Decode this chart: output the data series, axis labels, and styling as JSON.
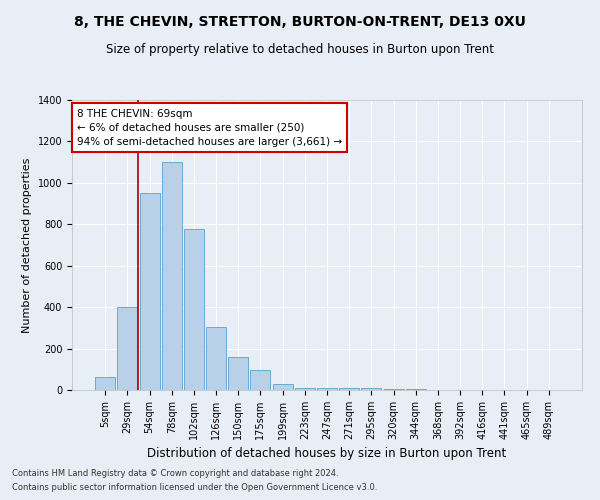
{
  "title": "8, THE CHEVIN, STRETTON, BURTON-ON-TRENT, DE13 0XU",
  "subtitle": "Size of property relative to detached houses in Burton upon Trent",
  "xlabel": "Distribution of detached houses by size in Burton upon Trent",
  "ylabel": "Number of detached properties",
  "footnote1": "Contains HM Land Registry data © Crown copyright and database right 2024.",
  "footnote2": "Contains public sector information licensed under the Open Government Licence v3.0.",
  "categories": [
    "5sqm",
    "29sqm",
    "54sqm",
    "78sqm",
    "102sqm",
    "126sqm",
    "150sqm",
    "175sqm",
    "199sqm",
    "223sqm",
    "247sqm",
    "271sqm",
    "295sqm",
    "320sqm",
    "344sqm",
    "368sqm",
    "392sqm",
    "416sqm",
    "441sqm",
    "465sqm",
    "489sqm"
  ],
  "values": [
    65,
    400,
    950,
    1100,
    775,
    305,
    160,
    95,
    30,
    12,
    10,
    10,
    8,
    5,
    3,
    2,
    1,
    1,
    1,
    1,
    1
  ],
  "bar_color": "#b8d0e8",
  "bar_edge_color": "#6aaad4",
  "bg_color": "#e8eef5",
  "grid_color": "#ffffff",
  "vline_x": 1.5,
  "vline_color": "#aa0000",
  "annotation_text": "8 THE CHEVIN: 69sqm\n← 6% of detached houses are smaller (250)\n94% of semi-detached houses are larger (3,661) →",
  "annotation_box_color": "#ffffff",
  "annotation_box_edge": "#cc0000",
  "ylim": [
    0,
    1400
  ],
  "yticks": [
    0,
    200,
    400,
    600,
    800,
    1000,
    1200,
    1400
  ],
  "title_fontsize": 10,
  "subtitle_fontsize": 8.5,
  "xlabel_fontsize": 8.5,
  "ylabel_fontsize": 8,
  "tick_fontsize": 7,
  "annotation_fontsize": 7.5,
  "footnote_fontsize": 6
}
